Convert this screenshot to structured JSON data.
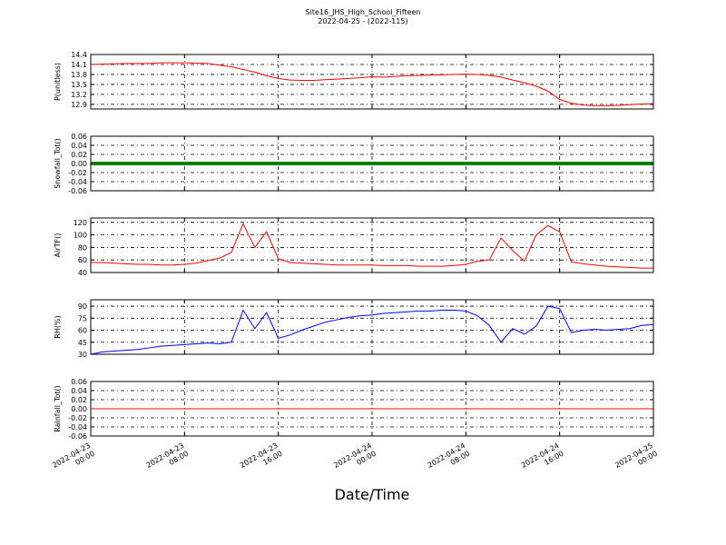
{
  "title": "Site16_JHS_High_School_Fifteen",
  "subtitle": "2022-04-25 - (2022-115)",
  "x_label": "Date/Time",
  "xlim": [
    "2022-04-23 00:00",
    "2022-04-25 00:00"
  ],
  "xticks": [
    "2022-04-23 00:00",
    "2022-04-23 08:00",
    "2022-04-23 16:00",
    "2022-04-24 00:00",
    "2022-04-24 08:00",
    "2022-04-24 16:00",
    "2022-04-25 00:00"
  ],
  "grid": true,
  "x": [
    "2022-04-23 00:00",
    "2022-04-23 01:00",
    "2022-04-23 02:00",
    "2022-04-23 03:00",
    "2022-04-23 04:00",
    "2022-04-23 05:00",
    "2022-04-23 06:00",
    "2022-04-23 07:00",
    "2022-04-23 08:00",
    "2022-04-23 09:00",
    "2022-04-23 10:00",
    "2022-04-23 11:00",
    "2022-04-23 12:00",
    "2022-04-23 13:00",
    "2022-04-23 14:00",
    "2022-04-23 15:00",
    "2022-04-23 16:00",
    "2022-04-23 17:00",
    "2022-04-23 18:00",
    "2022-04-23 19:00",
    "2022-04-23 20:00",
    "2022-04-23 21:00",
    "2022-04-23 22:00",
    "2022-04-23 23:00",
    "2022-04-24 00:00",
    "2022-04-24 01:00",
    "2022-04-24 02:00",
    "2022-04-24 03:00",
    "2022-04-24 04:00",
    "2022-04-24 05:00",
    "2022-04-24 06:00",
    "2022-04-24 07:00",
    "2022-04-24 08:00",
    "2022-04-24 09:00",
    "2022-04-24 10:00",
    "2022-04-24 11:00",
    "2022-04-24 12:00",
    "2022-04-24 13:00",
    "2022-04-24 14:00",
    "2022-04-24 15:00",
    "2022-04-24 16:00",
    "2022-04-24 17:00",
    "2022-04-24 18:00",
    "2022-04-24 19:00",
    "2022-04-24 20:00",
    "2022-04-24 21:00",
    "2022-04-24 22:00",
    "2022-04-24 23:00",
    "2022-04-25 00:00"
  ],
  "chart_data": [
    {
      "type": "line",
      "y_label": "P(unitless)",
      "ylim": [
        12.76,
        14.4
      ],
      "yticks": [
        12.9,
        13.2,
        13.5,
        13.8,
        14.1,
        14.4
      ],
      "series": [
        {
          "color": "#ff0000",
          "width": 1,
          "values": [
            14.1,
            14.11,
            14.12,
            14.13,
            14.13,
            14.13,
            14.15,
            14.15,
            14.15,
            14.14,
            14.13,
            14.08,
            14.03,
            13.95,
            13.87,
            13.76,
            13.68,
            13.63,
            13.62,
            13.62,
            13.64,
            13.66,
            13.68,
            13.7,
            13.73,
            13.72,
            13.74,
            13.76,
            13.77,
            13.78,
            13.79,
            13.8,
            13.81,
            13.8,
            13.77,
            13.72,
            13.63,
            13.55,
            13.45,
            13.3,
            13.05,
            12.93,
            12.88,
            12.86,
            12.86,
            12.87,
            12.89,
            12.91,
            12.92
          ]
        }
      ]
    },
    {
      "type": "line",
      "y_label": "Snowfall_Tot()",
      "ylim": [
        -0.06,
        0.06
      ],
      "yticks": [
        -0.06,
        -0.04,
        -0.02,
        {
          "value": 0,
          "label": "0.00"
        },
        0.02,
        0.04,
        0.06
      ],
      "series": [
        {
          "color": "#008000",
          "width": 4,
          "values": [
            0,
            0,
            0,
            0,
            0,
            0,
            0,
            0,
            0,
            0,
            0,
            0,
            0,
            0,
            0,
            0,
            0,
            0,
            0,
            0,
            0,
            0,
            0,
            0,
            0,
            0,
            0,
            0,
            0,
            0,
            0,
            0,
            0,
            0,
            0,
            0,
            0,
            0,
            0,
            0,
            0,
            0,
            0,
            0,
            0,
            0,
            0,
            0,
            0
          ]
        }
      ]
    },
    {
      "type": "line",
      "y_label": "AirTF()",
      "ylim": [
        40,
        127
      ],
      "yticks": [
        40,
        60,
        80,
        100,
        120
      ],
      "series": [
        {
          "color": "#ff0000",
          "width": 1,
          "values": [
            56,
            56,
            55,
            54,
            53,
            53,
            52,
            52,
            53,
            55,
            59,
            63,
            72,
            118,
            80,
            105,
            62,
            56,
            55,
            54,
            53,
            52,
            52,
            52,
            52,
            51,
            51,
            51,
            50,
            50,
            50,
            51,
            53,
            58,
            60,
            95,
            75,
            58,
            100,
            115,
            105,
            57,
            54,
            52,
            50,
            49,
            48,
            47,
            47
          ]
        }
      ]
    },
    {
      "type": "line",
      "y_label": "RH(%)",
      "ylim": [
        30,
        98
      ],
      "yticks": [
        30,
        45,
        60,
        75,
        90
      ],
      "series": [
        {
          "color": "#0000ff",
          "width": 1,
          "values": [
            30,
            33,
            34,
            35,
            36,
            38,
            40,
            41,
            42,
            43,
            44,
            43,
            45,
            85,
            62,
            82,
            50,
            54,
            60,
            65,
            70,
            73,
            76,
            78,
            79,
            81,
            82,
            83,
            84,
            84,
            85,
            85,
            84,
            78,
            66,
            45,
            62,
            55,
            65,
            90,
            87,
            57,
            60,
            61,
            60,
            61,
            62,
            66,
            67
          ]
        }
      ]
    },
    {
      "type": "line",
      "y_label": "Rainfall_Tot()",
      "ylim": [
        -0.06,
        0.06
      ],
      "yticks": [
        -0.06,
        -0.04,
        -0.02,
        {
          "value": 0,
          "label": "0.00"
        },
        0.02,
        0.04,
        0.06
      ],
      "series": [
        {
          "color": "#ff0000",
          "width": 1,
          "values": [
            0,
            0,
            0,
            0,
            0,
            0,
            0,
            0,
            0,
            0,
            0,
            0,
            0,
            0,
            0,
            0,
            0,
            0,
            0,
            0,
            0,
            0,
            0,
            0,
            0,
            0,
            0,
            0,
            0,
            0,
            0,
            0,
            0,
            0,
            0,
            0,
            0,
            0,
            0,
            0,
            0,
            0,
            0,
            0,
            0,
            0,
            0,
            0,
            0
          ]
        }
      ]
    }
  ]
}
